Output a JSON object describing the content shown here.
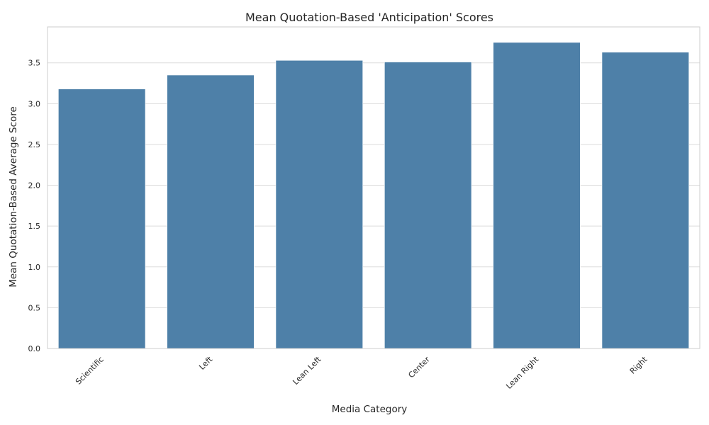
{
  "chart_data": {
    "type": "bar",
    "title": "Mean Quotation-Based 'Anticipation' Scores",
    "xlabel": "Media Category",
    "ylabel": "Mean Quotation-Based Average Score",
    "categories": [
      "Scientific",
      "Left",
      "Lean Left",
      "Center",
      "Lean Right",
      "Right"
    ],
    "values": [
      3.18,
      3.35,
      3.53,
      3.51,
      3.75,
      3.63
    ],
    "ylim": [
      0,
      3.94
    ],
    "yticks": [
      "0.0",
      "0.5",
      "1.0",
      "1.5",
      "2.0",
      "2.5",
      "3.0",
      "3.5"
    ],
    "grid": "horizontal",
    "bar_color": "#4e80a8",
    "grid_color": "#dcdcdc",
    "spine_color": "#cccccc"
  }
}
